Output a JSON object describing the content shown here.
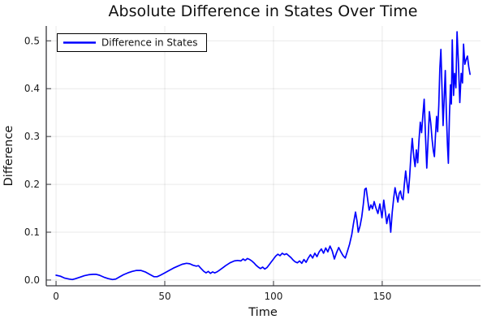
{
  "figure": {
    "title": "Absolute Difference in States Over Time"
  },
  "chart_data": {
    "type": "line",
    "title": "Absolute Difference in States Over Time",
    "xlabel": "Time",
    "ylabel": "Difference",
    "grid": true,
    "legend_position": "top-left",
    "xlim": [
      -4.5,
      195.2
    ],
    "ylim": [
      -0.012,
      0.531
    ],
    "xticks": [
      0,
      50,
      100,
      150
    ],
    "yticks": [
      0.0,
      0.1,
      0.2,
      0.3,
      0.4,
      0.5
    ],
    "series": [
      {
        "name": "Difference in States",
        "color": "#0000ff",
        "points": [
          [
            0,
            0.01
          ],
          [
            2,
            0.008
          ],
          [
            4,
            0.004
          ],
          [
            6,
            0.002
          ],
          [
            7.5,
            0.001
          ],
          [
            9,
            0.003
          ],
          [
            11,
            0.006
          ],
          [
            13,
            0.009
          ],
          [
            15,
            0.011
          ],
          [
            17,
            0.012
          ],
          [
            18.5,
            0.012
          ],
          [
            20,
            0.01
          ],
          [
            22,
            0.006
          ],
          [
            24,
            0.003
          ],
          [
            26,
            0.001
          ],
          [
            27.5,
            0.002
          ],
          [
            29,
            0.006
          ],
          [
            31,
            0.011
          ],
          [
            33,
            0.015
          ],
          [
            35,
            0.018
          ],
          [
            37,
            0.02
          ],
          [
            39,
            0.02
          ],
          [
            41,
            0.017
          ],
          [
            43,
            0.012
          ],
          [
            45,
            0.007
          ],
          [
            46.5,
            0.007
          ],
          [
            48,
            0.01
          ],
          [
            50,
            0.015
          ],
          [
            52,
            0.02
          ],
          [
            54,
            0.025
          ],
          [
            56,
            0.029
          ],
          [
            58,
            0.033
          ],
          [
            60,
            0.035
          ],
          [
            61.5,
            0.034
          ],
          [
            63,
            0.031
          ],
          [
            64.5,
            0.029
          ],
          [
            65.5,
            0.03
          ],
          [
            66.5,
            0.025
          ],
          [
            68,
            0.018
          ],
          [
            69,
            0.015
          ],
          [
            70,
            0.018
          ],
          [
            71,
            0.014
          ],
          [
            72,
            0.017
          ],
          [
            73,
            0.015
          ],
          [
            74,
            0.017
          ],
          [
            75,
            0.02
          ],
          [
            76.5,
            0.025
          ],
          [
            78,
            0.03
          ],
          [
            80,
            0.036
          ],
          [
            82,
            0.04
          ],
          [
            83.5,
            0.041
          ],
          [
            85,
            0.04
          ],
          [
            86,
            0.044
          ],
          [
            87,
            0.041
          ],
          [
            88,
            0.045
          ],
          [
            89,
            0.043
          ],
          [
            90,
            0.04
          ],
          [
            91,
            0.036
          ],
          [
            92,
            0.031
          ],
          [
            93,
            0.027
          ],
          [
            94,
            0.024
          ],
          [
            95,
            0.027
          ],
          [
            96,
            0.023
          ],
          [
            97,
            0.026
          ],
          [
            98,
            0.032
          ],
          [
            99,
            0.038
          ],
          [
            100,
            0.044
          ],
          [
            101,
            0.05
          ],
          [
            102,
            0.054
          ],
          [
            103,
            0.051
          ],
          [
            104,
            0.056
          ],
          [
            105,
            0.053
          ],
          [
            106,
            0.055
          ],
          [
            107,
            0.051
          ],
          [
            108,
            0.047
          ],
          [
            109,
            0.042
          ],
          [
            110,
            0.038
          ],
          [
            111,
            0.036
          ],
          [
            112,
            0.04
          ],
          [
            113,
            0.035
          ],
          [
            114,
            0.043
          ],
          [
            115,
            0.037
          ],
          [
            116,
            0.046
          ],
          [
            117,
            0.053
          ],
          [
            118,
            0.046
          ],
          [
            119,
            0.056
          ],
          [
            120,
            0.049
          ],
          [
            121,
            0.059
          ],
          [
            122,
            0.065
          ],
          [
            123,
            0.056
          ],
          [
            124,
            0.067
          ],
          [
            125,
            0.059
          ],
          [
            126,
            0.071
          ],
          [
            127,
            0.061
          ],
          [
            128,
            0.044
          ],
          [
            129,
            0.057
          ],
          [
            130,
            0.068
          ],
          [
            131,
            0.059
          ],
          [
            132,
            0.051
          ],
          [
            133,
            0.046
          ],
          [
            134,
            0.06
          ],
          [
            135,
            0.075
          ],
          [
            136,
            0.095
          ],
          [
            136.8,
            0.118
          ],
          [
            137.7,
            0.142
          ],
          [
            138.4,
            0.124
          ],
          [
            139,
            0.1
          ],
          [
            139.8,
            0.113
          ],
          [
            140.6,
            0.132
          ],
          [
            141.3,
            0.158
          ],
          [
            142,
            0.19
          ],
          [
            142.6,
            0.192
          ],
          [
            143.3,
            0.168
          ],
          [
            144,
            0.146
          ],
          [
            144.8,
            0.157
          ],
          [
            145.5,
            0.149
          ],
          [
            146.3,
            0.164
          ],
          [
            147.1,
            0.151
          ],
          [
            148,
            0.139
          ],
          [
            148.9,
            0.159
          ],
          [
            149.9,
            0.13
          ],
          [
            150.7,
            0.167
          ],
          [
            151.5,
            0.14
          ],
          [
            152.1,
            0.118
          ],
          [
            152.7,
            0.132
          ],
          [
            153.2,
            0.138
          ],
          [
            153.9,
            0.1
          ],
          [
            154.6,
            0.141
          ],
          [
            155.3,
            0.172
          ],
          [
            155.9,
            0.193
          ],
          [
            156.6,
            0.176
          ],
          [
            157.2,
            0.163
          ],
          [
            157.8,
            0.181
          ],
          [
            158.4,
            0.186
          ],
          [
            159,
            0.172
          ],
          [
            159.6,
            0.168
          ],
          [
            160.2,
            0.201
          ],
          [
            160.8,
            0.228
          ],
          [
            161.4,
            0.204
          ],
          [
            162,
            0.182
          ],
          [
            162.6,
            0.216
          ],
          [
            163.2,
            0.262
          ],
          [
            163.8,
            0.296
          ],
          [
            164.5,
            0.258
          ],
          [
            165.1,
            0.237
          ],
          [
            165.7,
            0.272
          ],
          [
            166.3,
            0.245
          ],
          [
            166.9,
            0.292
          ],
          [
            167.5,
            0.33
          ],
          [
            168.1,
            0.308
          ],
          [
            168.7,
            0.345
          ],
          [
            169.3,
            0.378
          ],
          [
            169.9,
            0.302
          ],
          [
            170.5,
            0.234
          ],
          [
            171.1,
            0.292
          ],
          [
            171.7,
            0.352
          ],
          [
            172.3,
            0.328
          ],
          [
            172.9,
            0.295
          ],
          [
            173.5,
            0.27
          ],
          [
            174,
            0.258
          ],
          [
            174.5,
            0.302
          ],
          [
            175,
            0.342
          ],
          [
            175.5,
            0.31
          ],
          [
            176,
            0.365
          ],
          [
            176.5,
            0.442
          ],
          [
            177,
            0.482
          ],
          [
            177.5,
            0.398
          ],
          [
            178,
            0.323
          ],
          [
            178.5,
            0.382
          ],
          [
            179,
            0.438
          ],
          [
            179.5,
            0.35
          ],
          [
            180,
            0.282
          ],
          [
            180.4,
            0.244
          ],
          [
            180.9,
            0.342
          ],
          [
            181.4,
            0.408
          ],
          [
            181.8,
            0.368
          ],
          [
            182.2,
            0.502
          ],
          [
            182.8,
            0.386
          ],
          [
            183.3,
            0.432
          ],
          [
            183.9,
            0.402
          ],
          [
            184.4,
            0.519
          ],
          [
            185,
            0.458
          ],
          [
            185.7,
            0.371
          ],
          [
            186.3,
            0.432
          ],
          [
            186.9,
            0.412
          ],
          [
            187.4,
            0.493
          ],
          [
            188,
            0.451
          ],
          [
            188.6,
            0.461
          ],
          [
            189.2,
            0.468
          ],
          [
            189.8,
            0.446
          ],
          [
            190.4,
            0.43
          ]
        ]
      }
    ]
  }
}
